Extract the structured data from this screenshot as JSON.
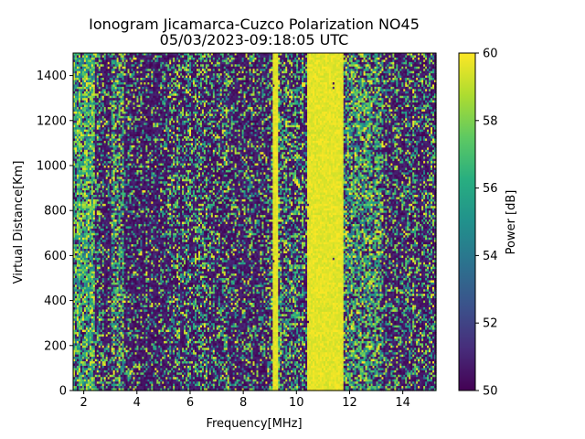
{
  "chart_data": {
    "type": "heatmap",
    "title_line1": "Ionogram Jicamarca-Cuzco Polarization NO45",
    "title_line2": "05/03/2023-09:18:05 UTC",
    "xlabel": "Frequency[MHz]",
    "ylabel": "Virtual Distance[Km]",
    "xlim": [
      1.6,
      15.25
    ],
    "ylim": [
      0,
      1500
    ],
    "xticks": [
      2,
      4,
      6,
      8,
      10,
      12,
      14
    ],
    "yticks": [
      0,
      200,
      400,
      600,
      800,
      1000,
      1200,
      1400
    ],
    "colorbar": {
      "label": "Power [dB]",
      "range": [
        50,
        60
      ],
      "ticks": [
        50,
        52,
        54,
        56,
        58,
        60
      ],
      "colormap": "viridis"
    },
    "frequency_bins": 200,
    "range_bins": 150,
    "column_profile": {
      "description": "approximate mean power level (0 = 50 dB, 1 = 60 dB) per frequency band",
      "bands": [
        {
          "from": 1.6,
          "to": 2.4,
          "level": 0.72
        },
        {
          "from": 2.4,
          "to": 3.0,
          "level": 0.22
        },
        {
          "from": 3.0,
          "to": 3.5,
          "level": 0.55
        },
        {
          "from": 3.5,
          "to": 5.0,
          "level": 0.15
        },
        {
          "from": 5.0,
          "to": 6.5,
          "level": 0.28
        },
        {
          "from": 6.5,
          "to": 8.5,
          "level": 0.22
        },
        {
          "from": 8.5,
          "to": 9.1,
          "level": 0.15
        },
        {
          "from": 9.1,
          "to": 9.3,
          "level": 1.0
        },
        {
          "from": 9.3,
          "to": 9.6,
          "level": 0.4
        },
        {
          "from": 9.6,
          "to": 10.4,
          "level": 0.35
        },
        {
          "from": 10.4,
          "to": 11.8,
          "level": 0.97
        },
        {
          "from": 11.8,
          "to": 13.2,
          "level": 0.55
        },
        {
          "from": 13.2,
          "to": 15.25,
          "level": 0.25
        }
      ]
    }
  }
}
